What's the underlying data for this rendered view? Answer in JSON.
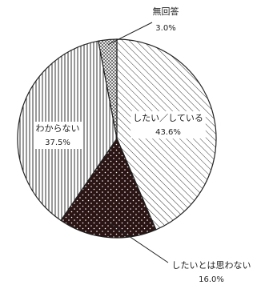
{
  "chart_data": {
    "type": "pie",
    "title": "",
    "slices": [
      {
        "label": "したい／している",
        "value": 43.6,
        "value_label": "43.6%",
        "pattern": "diagonal-lines",
        "label_color": "#ffffff"
      },
      {
        "label": "したいとは思わない",
        "value": 16.0,
        "value_label": "16.0%",
        "pattern": "dark-dots",
        "label_color": "#222222"
      },
      {
        "label": "わからない",
        "value": 37.5,
        "value_label": "37.5%",
        "pattern": "vertical-lines",
        "label_color": "#222222"
      },
      {
        "label": "無回答",
        "value": 3.0,
        "value_label": "3.0%",
        "pattern": "crosshatch",
        "label_color": "#222222"
      }
    ],
    "start_angle": "12 o'clock",
    "direction": "clockwise",
    "legend": "none",
    "colors": {
      "line": "#222222",
      "dark_fill": "#2a1414",
      "background": "#ffffff"
    }
  }
}
